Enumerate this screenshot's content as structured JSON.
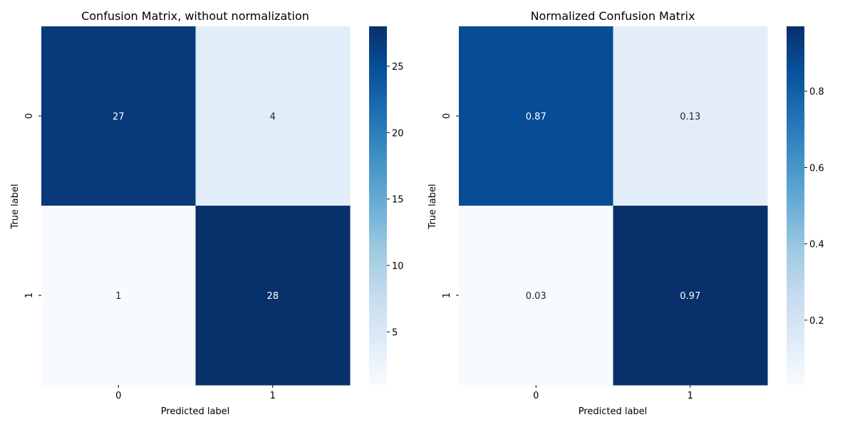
{
  "chart_data": [
    {
      "type": "heatmap",
      "title": "Confusion Matrix, without normalization",
      "xlabel": "Predicted label",
      "ylabel": "True label",
      "x_categories": [
        "0",
        "1"
      ],
      "y_categories": [
        "0",
        "1"
      ],
      "values": [
        [
          27,
          4
        ],
        [
          1,
          28
        ]
      ],
      "annotations": [
        [
          "27",
          "4"
        ],
        [
          "1",
          "28"
        ]
      ],
      "colormap": "Blues",
      "value_range": [
        1,
        28
      ],
      "colorbar_ticks": [
        5,
        10,
        15,
        20,
        25
      ],
      "colorbar_tick_labels": [
        "5",
        "10",
        "15",
        "20",
        "25"
      ]
    },
    {
      "type": "heatmap",
      "title": "Normalized Confusion Matrix",
      "xlabel": "Predicted label",
      "ylabel": "True label",
      "x_categories": [
        "0",
        "1"
      ],
      "y_categories": [
        "0",
        "1"
      ],
      "values": [
        [
          0.87,
          0.13
        ],
        [
          0.03,
          0.97
        ]
      ],
      "annotations": [
        [
          "0.87",
          "0.13"
        ],
        [
          "0.03",
          "0.97"
        ]
      ],
      "colormap": "Blues",
      "value_range": [
        0.03,
        0.97
      ],
      "colorbar_ticks": [
        0.2,
        0.4,
        0.6,
        0.8
      ],
      "colorbar_tick_labels": [
        "0.2",
        "0.4",
        "0.6",
        "0.8"
      ]
    }
  ],
  "colors": {
    "blues_scale": [
      "#f7fbff",
      "#deebf7",
      "#c6dbef",
      "#9ecae1",
      "#6baed6",
      "#4292c6",
      "#2171b5",
      "#08519c",
      "#08306b"
    ],
    "dark_text": "#262626",
    "light_text": "#ffffff",
    "axis": "#000000"
  }
}
